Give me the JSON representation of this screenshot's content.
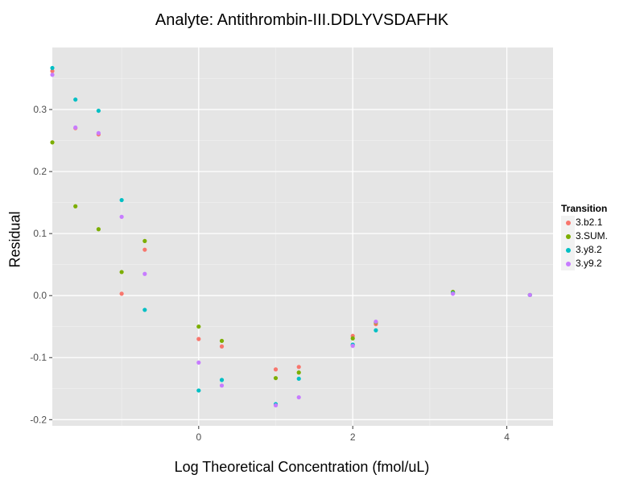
{
  "chart_data": {
    "type": "scatter",
    "title": "Analyte: Antithrombin-III.DDLYVSDAFHK",
    "xlabel": "Log Theoretical Concentration (fmol/uL)",
    "ylabel": "Residual",
    "xlim": [
      -1.9,
      4.6
    ],
    "ylim": [
      -0.21,
      0.4
    ],
    "xticks": [
      0,
      2,
      4
    ],
    "xtick_labels": [
      "0",
      "2",
      "4"
    ],
    "yticks": [
      -0.2,
      -0.1,
      0.0,
      0.1,
      0.2,
      0.3
    ],
    "ytick_labels": [
      "-0.2",
      "-0.1",
      "0.0",
      "0.1",
      "0.2",
      "0.3"
    ],
    "grid": true,
    "legend": {
      "title": "Transition",
      "position": "right"
    },
    "series": [
      {
        "name": "3.b2.1",
        "color": "#F8766D",
        "points": [
          [
            -1.9,
            0.362
          ],
          [
            -1.6,
            0.27
          ],
          [
            -1.3,
            0.26
          ],
          [
            -1.0,
            0.003
          ],
          [
            -0.7,
            0.074
          ],
          [
            0,
            -0.07
          ],
          [
            0.3,
            -0.082
          ],
          [
            1.0,
            -0.119
          ],
          [
            1.3,
            -0.115
          ],
          [
            2.0,
            -0.065
          ],
          [
            2.3,
            -0.046
          ],
          [
            3.3,
            0.005
          ],
          [
            4.3,
            0.001
          ]
        ]
      },
      {
        "name": "3.SUM.",
        "color": "#7CAE00",
        "points": [
          [
            -1.9,
            0.247
          ],
          [
            -1.6,
            0.144
          ],
          [
            -1.3,
            0.107
          ],
          [
            -1.0,
            0.038
          ],
          [
            -0.7,
            0.088
          ],
          [
            0,
            -0.05
          ],
          [
            0.3,
            -0.073
          ],
          [
            1.0,
            -0.133
          ],
          [
            1.3,
            -0.124
          ],
          [
            2.0,
            -0.069
          ],
          [
            2.3,
            -0.043
          ],
          [
            3.3,
            0.006
          ],
          [
            4.3,
            0.001
          ]
        ]
      },
      {
        "name": "3.y8.2",
        "color": "#00BFC4",
        "points": [
          [
            -1.9,
            0.367
          ],
          [
            -1.6,
            0.316
          ],
          [
            -1.3,
            0.298
          ],
          [
            -1.0,
            0.154
          ],
          [
            -0.7,
            -0.023
          ],
          [
            0,
            -0.153
          ],
          [
            0.3,
            -0.136
          ],
          [
            1.0,
            -0.175
          ],
          [
            1.3,
            -0.134
          ],
          [
            2.0,
            -0.079
          ],
          [
            2.3,
            -0.056
          ],
          [
            3.3,
            0.004
          ],
          [
            4.3,
            0.001
          ]
        ]
      },
      {
        "name": "3.y9.2",
        "color": "#C77CFF",
        "points": [
          [
            -1.9,
            0.356
          ],
          [
            -1.6,
            0.271
          ],
          [
            -1.3,
            0.262
          ],
          [
            -1.0,
            0.127
          ],
          [
            -0.7,
            0.035
          ],
          [
            0,
            -0.108
          ],
          [
            0.3,
            -0.145
          ],
          [
            1.0,
            -0.177
          ],
          [
            1.3,
            -0.164
          ],
          [
            2.0,
            -0.081
          ],
          [
            2.3,
            -0.042
          ],
          [
            3.3,
            0.003
          ],
          [
            4.3,
            0.001
          ]
        ]
      }
    ]
  }
}
